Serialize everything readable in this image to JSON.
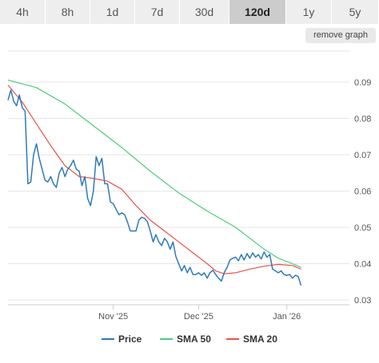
{
  "tabs": [
    {
      "label": "4h",
      "active": false
    },
    {
      "label": "8h",
      "active": false
    },
    {
      "label": "1d",
      "active": false
    },
    {
      "label": "7d",
      "active": false
    },
    {
      "label": "30d",
      "active": false
    },
    {
      "label": "120d",
      "active": true
    },
    {
      "label": "1y",
      "active": false
    },
    {
      "label": "5y",
      "active": false
    }
  ],
  "remove_graph_label": "remove graph",
  "colors": {
    "price": "#2f7ab8",
    "sma50": "#4ccc7a",
    "sma20": "#e8534a",
    "grid": "#e6e6e6"
  },
  "chart_data": {
    "type": "line",
    "x_tick_labels": [
      {
        "x": 37,
        "label": "Nov '25"
      },
      {
        "x": 67,
        "label": "Dec '25"
      },
      {
        "x": 98,
        "label": "Jan '26"
      }
    ],
    "y_ticks": [
      0.03,
      0.04,
      0.05,
      0.06,
      0.07,
      0.08,
      0.09
    ],
    "ylim": [
      0.0285,
      0.0912
    ],
    "xlim": [
      0,
      120
    ],
    "grid": true,
    "legend_position": "bottom",
    "series": [
      {
        "name": "Price",
        "key": "price",
        "points": [
          [
            0,
            0.085
          ],
          [
            1,
            0.0878
          ],
          [
            2,
            0.0848
          ],
          [
            3,
            0.0835
          ],
          [
            4,
            0.0865
          ],
          [
            5,
            0.083
          ],
          [
            6,
            0.082
          ],
          [
            7,
            0.062
          ],
          [
            8,
            0.0625
          ],
          [
            9,
            0.07
          ],
          [
            10,
            0.073
          ],
          [
            11,
            0.069
          ],
          [
            12,
            0.066
          ],
          [
            13,
            0.063
          ],
          [
            14,
            0.0625
          ],
          [
            15,
            0.064
          ],
          [
            16,
            0.062
          ],
          [
            17,
            0.061
          ],
          [
            18,
            0.065
          ],
          [
            19,
            0.0665
          ],
          [
            20,
            0.064
          ],
          [
            21,
            0.066
          ],
          [
            22,
            0.067
          ],
          [
            23,
            0.0685
          ],
          [
            24,
            0.066
          ],
          [
            25,
            0.0655
          ],
          [
            26,
            0.0615
          ],
          [
            27,
            0.064
          ],
          [
            28,
            0.058
          ],
          [
            29,
            0.056
          ],
          [
            30,
            0.06
          ],
          [
            31,
            0.0695
          ],
          [
            32,
            0.067
          ],
          [
            33,
            0.069
          ],
          [
            34,
            0.062
          ],
          [
            35,
            0.062
          ],
          [
            36,
            0.057
          ],
          [
            37,
            0.0565
          ],
          [
            38,
            0.055
          ],
          [
            39,
            0.0535
          ],
          [
            40,
            0.054
          ],
          [
            41,
            0.0535
          ],
          [
            42,
            0.0515
          ],
          [
            43,
            0.049
          ],
          [
            44,
            0.049
          ],
          [
            45,
            0.049
          ],
          [
            46,
            0.052
          ],
          [
            47,
            0.0528
          ],
          [
            48,
            0.0525
          ],
          [
            49,
            0.0515
          ],
          [
            50,
            0.049
          ],
          [
            51,
            0.046
          ],
          [
            52,
            0.048
          ],
          [
            53,
            0.046
          ],
          [
            54,
            0.045
          ],
          [
            55,
            0.047
          ],
          [
            56,
            0.046
          ],
          [
            57,
            0.044
          ],
          [
            58,
            0.046
          ],
          [
            59,
            0.042
          ],
          [
            60,
            0.04
          ],
          [
            61,
            0.038
          ],
          [
            62,
            0.0395
          ],
          [
            63,
            0.0375
          ],
          [
            64,
            0.039
          ],
          [
            65,
            0.037
          ],
          [
            66,
            0.037
          ],
          [
            67,
            0.0375
          ],
          [
            68,
            0.0368
          ],
          [
            69,
            0.0375
          ],
          [
            70,
            0.036
          ],
          [
            71,
            0.0375
          ],
          [
            72,
            0.0382
          ],
          [
            73,
            0.037
          ],
          [
            74,
            0.036
          ],
          [
            75,
            0.0352
          ],
          [
            76,
            0.0375
          ],
          [
            77,
            0.039
          ],
          [
            78,
            0.041
          ],
          [
            79,
            0.0415
          ],
          [
            80,
            0.0418
          ],
          [
            81,
            0.0408
          ],
          [
            82,
            0.0425
          ],
          [
            83,
            0.041
          ],
          [
            84,
            0.0428
          ],
          [
            85,
            0.0415
          ],
          [
            86,
            0.043
          ],
          [
            87,
            0.0418
          ],
          [
            88,
            0.0425
          ],
          [
            89,
            0.0413
          ],
          [
            90,
            0.0432
          ],
          [
            91,
            0.0418
          ],
          [
            92,
            0.0425
          ],
          [
            93,
            0.0385
          ],
          [
            94,
            0.038
          ],
          [
            95,
            0.0375
          ],
          [
            96,
            0.038
          ],
          [
            97,
            0.037
          ],
          [
            98,
            0.0368
          ],
          [
            99,
            0.037
          ],
          [
            100,
            0.036
          ],
          [
            101,
            0.0368
          ],
          [
            102,
            0.0365
          ],
          [
            103,
            0.034
          ]
        ]
      },
      {
        "name": "SMA 50",
        "key": "sma50",
        "points": [
          [
            0,
            0.0906
          ],
          [
            10,
            0.0885
          ],
          [
            20,
            0.084
          ],
          [
            30,
            0.078
          ],
          [
            40,
            0.072
          ],
          [
            50,
            0.0655
          ],
          [
            60,
            0.0595
          ],
          [
            70,
            0.0545
          ],
          [
            80,
            0.05
          ],
          [
            90,
            0.044
          ],
          [
            95,
            0.0415
          ],
          [
            100,
            0.04
          ],
          [
            103,
            0.039
          ]
        ]
      },
      {
        "name": "SMA 20",
        "key": "sma20",
        "points": [
          [
            0,
            0.0892
          ],
          [
            5,
            0.0845
          ],
          [
            10,
            0.0785
          ],
          [
            15,
            0.0725
          ],
          [
            20,
            0.067
          ],
          [
            25,
            0.064
          ],
          [
            30,
            0.0635
          ],
          [
            35,
            0.0627
          ],
          [
            40,
            0.0605
          ],
          [
            45,
            0.056
          ],
          [
            50,
            0.052
          ],
          [
            55,
            0.049
          ],
          [
            60,
            0.046
          ],
          [
            65,
            0.043
          ],
          [
            70,
            0.04
          ],
          [
            73,
            0.038
          ],
          [
            76,
            0.0372
          ],
          [
            80,
            0.0375
          ],
          [
            85,
            0.0385
          ],
          [
            90,
            0.0393
          ],
          [
            95,
            0.0398
          ],
          [
            100,
            0.0395
          ],
          [
            103,
            0.0385
          ]
        ]
      }
    ],
    "legend": [
      {
        "name": "Price",
        "key": "price"
      },
      {
        "name": "SMA 50",
        "key": "sma50"
      },
      {
        "name": "SMA 20",
        "key": "sma20"
      }
    ]
  }
}
